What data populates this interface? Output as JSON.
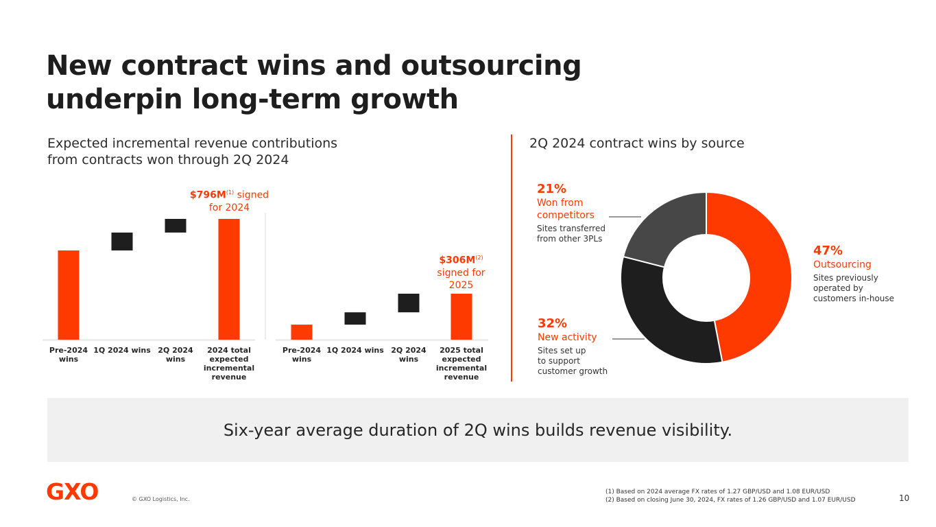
{
  "header": {
    "title_line1": "New contract wins and outsourcing",
    "title_line2": "underpin long-term growth"
  },
  "left_section": {
    "subtitle_line1": "Expected incremental revenue contributions",
    "subtitle_line2": "from contracts won through 2Q 2024"
  },
  "right_section": {
    "subtitle": "2Q 2024 contract wins by source"
  },
  "colors": {
    "accent": "#ff3a00",
    "dark": "#1e1e1e",
    "gray": "#474747",
    "banner_bg": "#f0f0f0"
  },
  "chart_data": [
    {
      "type": "bar",
      "subtype": "waterfall",
      "title": "Expected incremental revenue 2024",
      "categories": [
        "Pre-2024 wins",
        "1Q 2024 wins",
        "2Q 2024 wins",
        "2024 total expected incremental revenue"
      ],
      "values": [
        588,
        118,
        90,
        796
      ],
      "value_kind": [
        "base",
        "increment",
        "increment",
        "total"
      ],
      "units": "$M",
      "values_note": "segment values estimated; only total labeled",
      "annotation": {
        "value": "$796M",
        "footnote": "(1)",
        "text": "signed for 2024"
      }
    },
    {
      "type": "bar",
      "subtype": "waterfall",
      "title": "Expected incremental revenue 2025",
      "categories": [
        "Pre-2024 wins",
        "1Q 2024 wins",
        "2Q 2024 wins",
        "2025 total expected incremental revenue"
      ],
      "values": [
        100,
        82,
        124,
        306
      ],
      "value_kind": [
        "base",
        "increment",
        "increment",
        "total"
      ],
      "units": "$M",
      "values_note": "segment values estimated; only total labeled",
      "annotation": {
        "value": "$306M",
        "footnote": "(2)",
        "text_line1": "signed for",
        "text_line2": "2025"
      }
    },
    {
      "type": "pie",
      "subtype": "donut",
      "title": "2Q 2024 contract wins by source",
      "slices": [
        {
          "label": "Outsourcing",
          "pct": "47%",
          "value": 47,
          "desc": [
            "Sites previously",
            "operated by",
            "customers in-house"
          ],
          "color": "#ff3a00"
        },
        {
          "label": "New activity",
          "pct": "32%",
          "value": 32,
          "desc": [
            "Sites set up",
            "to support",
            "customer growth"
          ],
          "color": "#1e1e1e"
        },
        {
          "label": "Won from competitors",
          "label_lines": [
            "Won from",
            "competitors"
          ],
          "pct": "21%",
          "value": 21,
          "desc": [
            "Sites transferred",
            "from other 3PLs"
          ],
          "color": "#474747"
        }
      ]
    }
  ],
  "labels": {
    "left": [
      "Pre-2024\nwins",
      "1Q 2024 wins",
      "2Q 2024\nwins",
      "2024 total\nexpected\nincremental\nrevenue"
    ],
    "right": [
      "Pre-2024\nwins",
      "1Q 2024 wins",
      "2Q 2024\nwins",
      "2025 total\nexpected\nincremental\nrevenue"
    ]
  },
  "banner": {
    "text": "Six-year average duration of 2Q wins builds revenue visibility."
  },
  "footer": {
    "logo": "GXO",
    "copyright": "© GXO Logistics, Inc.",
    "footnote1": "(1) Based on 2024 average FX rates of 1.27 GBP/USD and 1.08 EUR/USD",
    "footnote2": "(2) Based on closing June 30, 2024, FX rates of 1.26 GBP/USD and 1.07 EUR/USD",
    "page_number": "10"
  }
}
